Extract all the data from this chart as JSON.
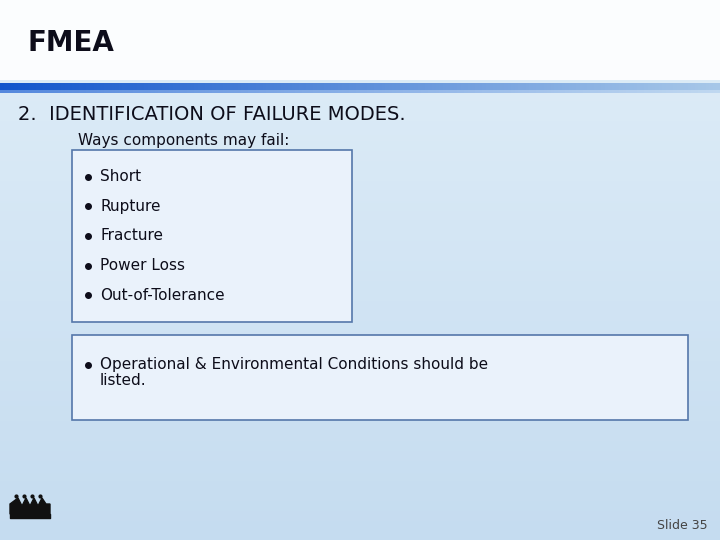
{
  "title": "FMEA",
  "heading": "2.  IDENTIFICATION OF FAILURE MODES.",
  "subheading": "Ways components may fail:",
  "box1_items": [
    "Short",
    "Rupture",
    "Fracture",
    "Power Loss",
    "Out-of-Tolerance"
  ],
  "box2_line1": "Operational & Environmental Conditions should be",
  "box2_line2": "listed.",
  "slide_number": "Slide 35",
  "bg_color_top": "#cfe2f3",
  "bg_color_bottom": "#daeeff",
  "title_color": "#0d0d1a",
  "text_color": "#0d0d1a",
  "bar_color_left": "#1155cc",
  "bar_color_right": "#a8c8e8",
  "box_edge_color": "#5577aa",
  "box_fill_color": "#eaf2fb",
  "title_fontsize": 20,
  "heading_fontsize": 14,
  "subheading_fontsize": 11,
  "body_fontsize": 11,
  "slide_num_fontsize": 9
}
